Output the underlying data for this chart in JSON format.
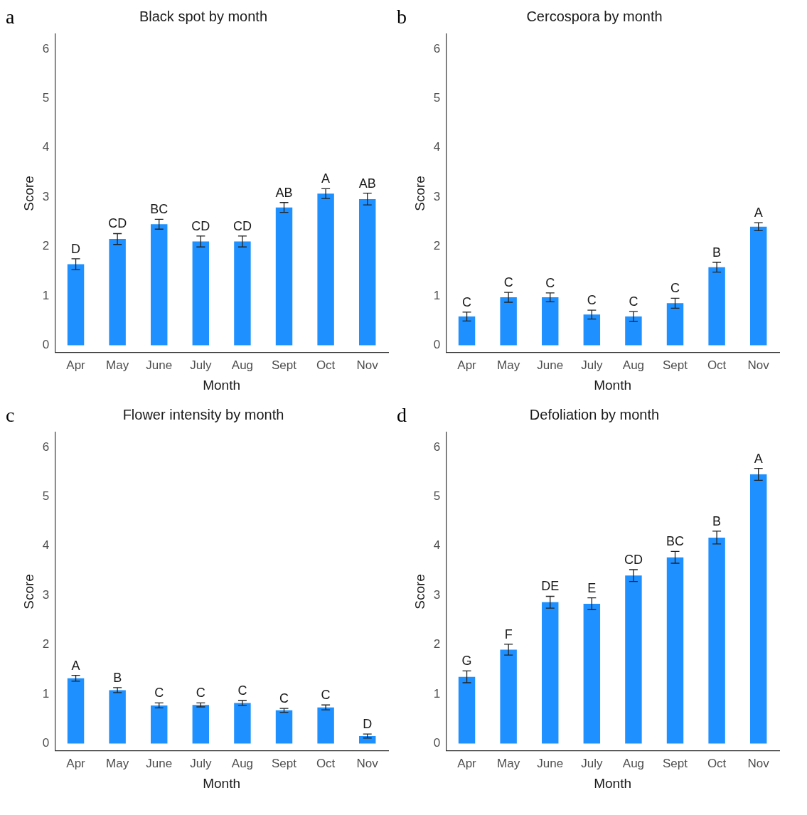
{
  "chart_data": [
    {
      "type": "bar",
      "title": "Black spot by month",
      "xlabel": "Month",
      "ylabel": "Score",
      "categories": [
        "Apr",
        "May",
        "June",
        "July",
        "Aug",
        "Sept",
        "Oct",
        "Nov"
      ],
      "values": [
        1.64,
        2.15,
        2.45,
        2.1,
        2.1,
        2.79,
        3.07,
        2.96
      ],
      "errors": [
        0.11,
        0.11,
        0.1,
        0.11,
        0.11,
        0.1,
        0.1,
        0.12
      ],
      "color": "#1e90ff",
      "ylim": [
        -0.15,
        6.3
      ],
      "yticks": [
        0,
        1,
        2,
        3,
        4,
        5,
        6
      ],
      "grid": false,
      "legend": false,
      "annotations": [
        "a",
        {
          "text": "D",
          "x": "Apr",
          "y": 1.64
        },
        {
          "text": "CD",
          "x": "May",
          "y": 2.15
        },
        {
          "text": "BC",
          "x": "June",
          "y": 2.45
        },
        {
          "text": "CD",
          "x": "July",
          "y": 2.1
        },
        {
          "text": "CD",
          "x": "Aug",
          "y": 2.1
        },
        {
          "text": "AB",
          "x": "Sept",
          "y": 2.79
        },
        {
          "text": "A",
          "x": "Oct",
          "y": 3.07
        },
        {
          "text": "AB",
          "x": "Nov",
          "y": 2.96
        }
      ]
    },
    {
      "type": "bar",
      "title": "Cercospora by month",
      "xlabel": "Month",
      "ylabel": "Score",
      "categories": [
        "Apr",
        "May",
        "June",
        "July",
        "Aug",
        "Sept",
        "Oct",
        "Nov"
      ],
      "values": [
        0.58,
        0.97,
        0.97,
        0.62,
        0.58,
        0.85,
        1.58,
        2.4
      ],
      "errors": [
        0.09,
        0.1,
        0.09,
        0.09,
        0.1,
        0.1,
        0.1,
        0.08
      ],
      "color": "#1e90ff",
      "ylim": [
        -0.15,
        6.3
      ],
      "yticks": [
        0,
        1,
        2,
        3,
        4,
        5,
        6
      ],
      "grid": false,
      "legend": false,
      "annotations": [
        "b",
        {
          "text": "C",
          "x": "Apr",
          "y": 0.58
        },
        {
          "text": "C",
          "x": "May",
          "y": 0.97
        },
        {
          "text": "C",
          "x": "June",
          "y": 0.97
        },
        {
          "text": "C",
          "x": "July",
          "y": 0.62
        },
        {
          "text": "C",
          "x": "Aug",
          "y": 0.58
        },
        {
          "text": "C",
          "x": "Sept",
          "y": 0.85
        },
        {
          "text": "B",
          "x": "Oct",
          "y": 1.58
        },
        {
          "text": "A",
          "x": "Nov",
          "y": 2.4
        }
      ]
    },
    {
      "type": "bar",
      "title": "Flower intensity by month",
      "xlabel": "Month",
      "ylabel": "Score",
      "categories": [
        "Apr",
        "May",
        "June",
        "July",
        "Aug",
        "Sept",
        "Oct",
        "Nov"
      ],
      "values": [
        1.32,
        1.08,
        0.77,
        0.78,
        0.82,
        0.67,
        0.73,
        0.15
      ],
      "errors": [
        0.06,
        0.05,
        0.05,
        0.04,
        0.05,
        0.04,
        0.05,
        0.04
      ],
      "color": "#1e90ff",
      "ylim": [
        -0.15,
        6.3
      ],
      "yticks": [
        0,
        1,
        2,
        3,
        4,
        5,
        6
      ],
      "grid": false,
      "legend": false,
      "annotations": [
        "c",
        {
          "text": "A",
          "x": "Apr",
          "y": 1.32
        },
        {
          "text": "B",
          "x": "May",
          "y": 1.08
        },
        {
          "text": "C",
          "x": "June",
          "y": 0.77
        },
        {
          "text": "C",
          "x": "July",
          "y": 0.78
        },
        {
          "text": "C",
          "x": "Aug",
          "y": 0.82
        },
        {
          "text": "C",
          "x": "Sept",
          "y": 0.67
        },
        {
          "text": "C",
          "x": "Oct",
          "y": 0.73
        },
        {
          "text": "D",
          "x": "Nov",
          "y": 0.15
        }
      ]
    },
    {
      "type": "bar",
      "title": "Defoliation by month",
      "xlabel": "Month",
      "ylabel": "Score",
      "categories": [
        "Apr",
        "May",
        "June",
        "July",
        "Aug",
        "Sept",
        "Oct",
        "Nov"
      ],
      "values": [
        1.35,
        1.9,
        2.86,
        2.83,
        3.4,
        3.77,
        4.17,
        5.45
      ],
      "errors": [
        0.12,
        0.11,
        0.12,
        0.12,
        0.12,
        0.12,
        0.13,
        0.12
      ],
      "color": "#1e90ff",
      "ylim": [
        -0.15,
        6.3
      ],
      "yticks": [
        0,
        1,
        2,
        3,
        4,
        5,
        6
      ],
      "grid": false,
      "legend": false,
      "annotations": [
        "d",
        {
          "text": "G",
          "x": "Apr",
          "y": 1.35
        },
        {
          "text": "F",
          "x": "May",
          "y": 1.9
        },
        {
          "text": "DE",
          "x": "June",
          "y": 2.86
        },
        {
          "text": "E",
          "x": "July",
          "y": 2.83
        },
        {
          "text": "CD",
          "x": "Aug",
          "y": 3.4
        },
        {
          "text": "BC",
          "x": "Sept",
          "y": 3.77
        },
        {
          "text": "B",
          "x": "Oct",
          "y": 4.17
        },
        {
          "text": "A",
          "x": "Nov",
          "y": 5.45
        }
      ]
    }
  ]
}
